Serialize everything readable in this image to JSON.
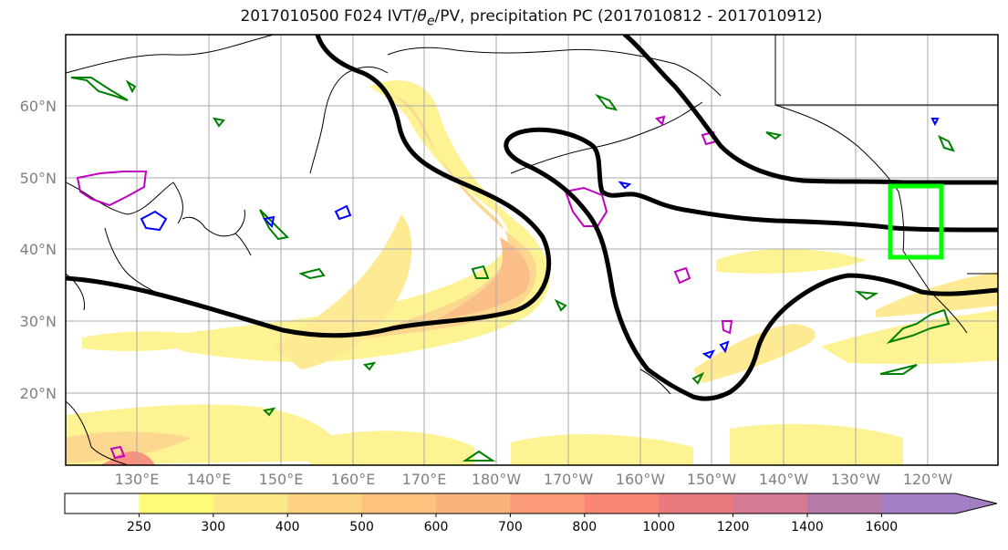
{
  "title": {
    "prefix": "2017010500 F024 IVT/",
    "theta": "θ",
    "theta_sub": "e",
    "suffix": "/PV, precipitation PC (2017010812 - 2017010912)"
  },
  "axes": {
    "lat_labels": [
      "60°N",
      "50°N",
      "40°N",
      "30°N",
      "20°N"
    ],
    "lon_labels": [
      "130°E",
      "140°E",
      "150°E",
      "160°E",
      "170°E",
      "180°W",
      "170°W",
      "160°W",
      "150°W",
      "140°W",
      "130°W",
      "120°W"
    ]
  },
  "colorbar": {
    "levels": [
      "250",
      "300",
      "400",
      "500",
      "600",
      "700",
      "800",
      "1000",
      "1200",
      "1400",
      "1600"
    ],
    "colors": [
      "#ffffff",
      "#fefc77",
      "#fde887",
      "#fdd282",
      "#fcc27e",
      "#fcb27b",
      "#fb9b77",
      "#f98674",
      "#e97b7e",
      "#d47a92",
      "#b57aa8",
      "#a27fc2"
    ]
  },
  "colors": {
    "contour_black": "#000000",
    "contour_green": "#008000",
    "contour_blue": "#0000ff",
    "contour_magenta": "#c000c0",
    "box": "#00ff00",
    "grid": "#aaaaaa",
    "tick_label": "#808080"
  }
}
